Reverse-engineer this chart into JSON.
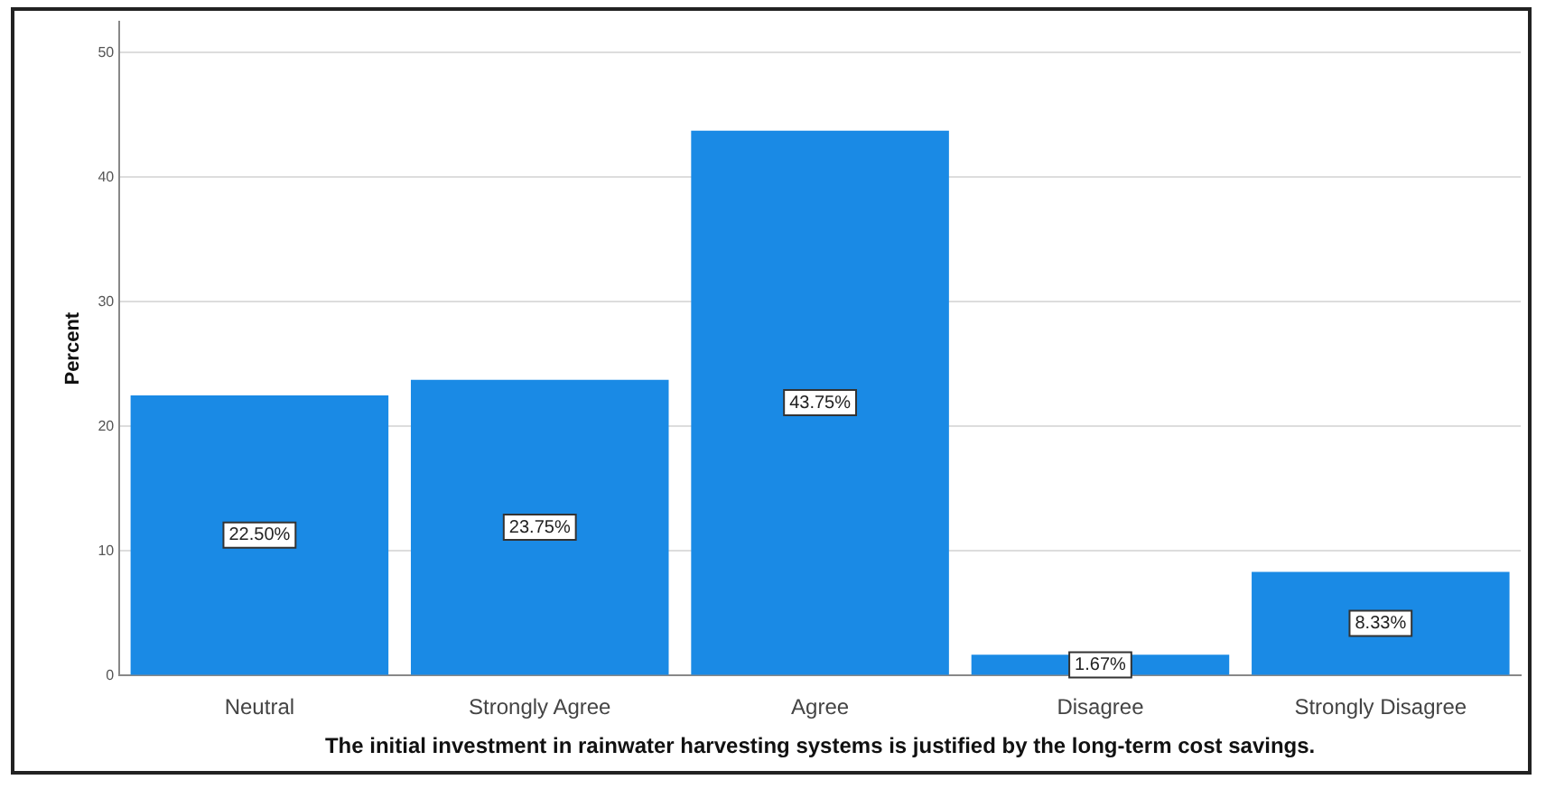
{
  "chart_data": {
    "type": "bar",
    "xlabel": "The initial investment in rainwater harvesting systems is justified by the long-term cost savings.",
    "ylabel": "Percent",
    "categories": [
      "Neutral",
      "Strongly Agree",
      "Agree",
      "Disagree",
      "Strongly Disagree"
    ],
    "values": [
      22.5,
      23.75,
      43.75,
      1.67,
      8.33
    ],
    "value_labels": [
      "22.50%",
      "23.75%",
      "43.75%",
      "1.67%",
      "8.33%"
    ],
    "color": "#1a8ae5",
    "ylim": [
      0,
      52.5
    ],
    "yticks": [
      0,
      10,
      20,
      30,
      40,
      50
    ],
    "grid": "y"
  }
}
